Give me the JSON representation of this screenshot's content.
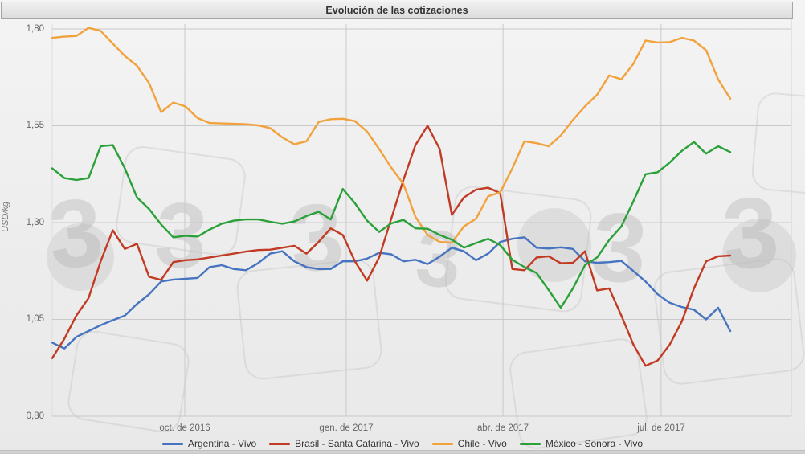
{
  "window": {
    "title": "Evolución de las cotizaciones"
  },
  "y_axis": {
    "label": "USD/kg",
    "ticks": [
      "1,80",
      "1,55",
      "1,30",
      "1,05",
      "0,80"
    ],
    "values": [
      1.8,
      1.55,
      1.3,
      1.05,
      0.8
    ]
  },
  "x_axis": {
    "ticks": [
      {
        "label": "oct. de 2016",
        "pos": 0.1955
      },
      {
        "label": "gen. de 2017",
        "pos": 0.4336
      },
      {
        "label": "abr. de 2017",
        "pos": 0.6648
      },
      {
        "label": "jul. de 2017",
        "pos": 0.898
      }
    ]
  },
  "watermark": {
    "glyph": "3"
  },
  "chart_data": {
    "type": "line",
    "title": "Evolución de las cotizaciones",
    "xlabel": "",
    "ylabel": "USD/kg",
    "ylim": [
      0.8,
      1.8
    ],
    "x_unit": "weekly prices, ~jul 2016 - ago 2017",
    "grid": true,
    "legend_position": "bottom",
    "series": [
      {
        "name": "Argentina - Vivo",
        "color": "#4674C1",
        "values": [
          0.99,
          0.975,
          1.005,
          1.02,
          1.035,
          1.048,
          1.06,
          1.09,
          1.115,
          1.148,
          1.153,
          1.155,
          1.157,
          1.185,
          1.19,
          1.18,
          1.177,
          1.195,
          1.22,
          1.226,
          1.2,
          1.185,
          1.18,
          1.18,
          1.2,
          1.2,
          1.207,
          1.222,
          1.218,
          1.2,
          1.204,
          1.193,
          1.212,
          1.235,
          1.226,
          1.203,
          1.22,
          1.25,
          1.258,
          1.262,
          1.235,
          1.233,
          1.236,
          1.232,
          1.2,
          1.196,
          1.198,
          1.201,
          1.175,
          1.148,
          1.115,
          1.093,
          1.082,
          1.075,
          1.05,
          1.08,
          1.02
        ]
      },
      {
        "name": "Brasil - Santa Catarina - Vivo",
        "color": "#C13B24",
        "values": [
          0.95,
          1.0,
          1.06,
          1.105,
          1.2,
          1.28,
          1.232,
          1.245,
          1.16,
          1.152,
          1.198,
          1.203,
          1.205,
          1.21,
          1.215,
          1.22,
          1.225,
          1.229,
          1.23,
          1.235,
          1.24,
          1.22,
          1.25,
          1.285,
          1.268,
          1.2,
          1.15,
          1.21,
          1.31,
          1.41,
          1.5,
          1.55,
          1.49,
          1.32,
          1.365,
          1.385,
          1.39,
          1.376,
          1.18,
          1.177,
          1.21,
          1.213,
          1.195,
          1.196,
          1.226,
          1.125,
          1.13,
          1.06,
          0.985,
          0.93,
          0.944,
          0.985,
          1.045,
          1.13,
          1.2,
          1.213,
          1.215
        ]
      },
      {
        "name": "Chile - Vivo",
        "color": "#F2A23C",
        "values": [
          1.777,
          1.78,
          1.782,
          1.803,
          1.795,
          1.762,
          1.73,
          1.705,
          1.66,
          1.585,
          1.61,
          1.6,
          1.57,
          1.557,
          1.556,
          1.555,
          1.554,
          1.551,
          1.544,
          1.52,
          1.502,
          1.51,
          1.56,
          1.567,
          1.568,
          1.562,
          1.535,
          1.49,
          1.442,
          1.4,
          1.315,
          1.268,
          1.25,
          1.248,
          1.29,
          1.31,
          1.368,
          1.378,
          1.44,
          1.51,
          1.505,
          1.497,
          1.525,
          1.565,
          1.6,
          1.63,
          1.68,
          1.67,
          1.71,
          1.77,
          1.765,
          1.766,
          1.777,
          1.77,
          1.745,
          1.67,
          1.62
        ]
      },
      {
        "name": "México - Sonora - Vivo",
        "color": "#2AA138",
        "values": [
          1.44,
          1.415,
          1.41,
          1.415,
          1.497,
          1.5,
          1.44,
          1.365,
          1.335,
          1.295,
          1.262,
          1.266,
          1.264,
          1.282,
          1.297,
          1.305,
          1.308,
          1.308,
          1.302,
          1.297,
          1.303,
          1.317,
          1.328,
          1.308,
          1.387,
          1.35,
          1.305,
          1.276,
          1.298,
          1.307,
          1.285,
          1.284,
          1.268,
          1.256,
          1.235,
          1.247,
          1.258,
          1.242,
          1.204,
          1.185,
          1.17,
          1.126,
          1.08,
          1.13,
          1.19,
          1.21,
          1.255,
          1.29,
          1.355,
          1.425,
          1.43,
          1.455,
          1.485,
          1.508,
          1.478,
          1.497,
          1.482
        ]
      }
    ]
  }
}
